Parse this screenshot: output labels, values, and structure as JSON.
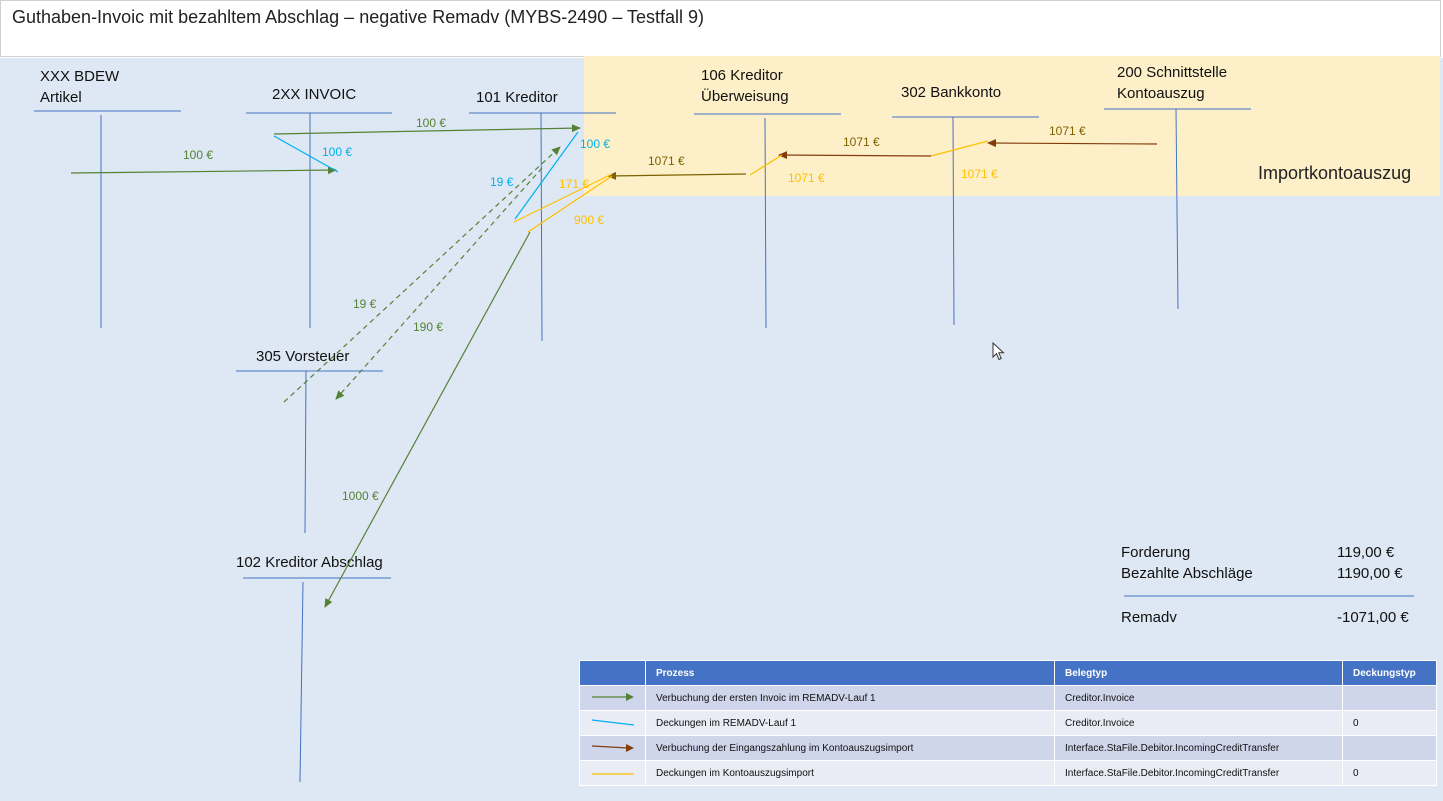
{
  "title": "Guthaben-Invoic mit bezahltem Abschlag – negative Remadv (MYBS-2490 – Testfall 9)",
  "import_zone_label": "Importkontoauszug",
  "accounts": {
    "bdew": "XXX BDEW\nArtikel",
    "invoic": "2XX INVOIC",
    "kreditor101": "101 Kreditor",
    "kreditor106": "106 Kreditor\nÜberweisung",
    "bank302": "302 Bankkonto",
    "schnittstelle200": "200 Schnittstelle\nKontoauszug",
    "vorsteuer305": "305 Vorsteuer",
    "abschlag102": "102 Kreditor Abschlag"
  },
  "amounts": {
    "g100_top": "100 €",
    "g100_left": "100 €",
    "b100_invoic": "100 €",
    "b100_kred": "100 €",
    "b19": "19 €",
    "o171": "171 €",
    "o900": "900 €",
    "br1071_a": "1071 €",
    "br1071_b": "1071 €",
    "br1071_c": "1071 €",
    "o1071_a": "1071 €",
    "o1071_b": "1071 €",
    "g19": "19 €",
    "g190": "190 €",
    "g1000": "1000 €"
  },
  "summary": {
    "forderung_label": "Forderung",
    "forderung_value": "119,00 €",
    "abschlaege_label": "Bezahlte Abschläge",
    "abschlaege_value": "1190,00 €",
    "remadv_label": "Remadv",
    "remadv_value": "-1071,00 €"
  },
  "legend": {
    "headers": [
      "",
      "Prozess",
      "Belegtyp",
      "Deckungstyp"
    ],
    "rows": [
      {
        "line": "green-arrow",
        "prozess": "Verbuchung der ersten Invoic im REMADV-Lauf 1",
        "belegtyp": "Creditor.Invoice",
        "deckungstyp": ""
      },
      {
        "line": "blue-line",
        "prozess": "Deckungen im REMADV-Lauf 1",
        "belegtyp": "Creditor.Invoice",
        "deckungstyp": "0"
      },
      {
        "line": "brown-arrow",
        "prozess": "Verbuchung der Eingangszahlung im Kontoauszugsimport",
        "belegtyp": "Interface.StaFile.Debitor.IncomingCreditTransfer",
        "deckungstyp": ""
      },
      {
        "line": "orange-line",
        "prozess": "Deckungen im Kontoauszugsimport",
        "belegtyp": "Interface.StaFile.Debitor.IncomingCreditTransfer",
        "deckungstyp": "0"
      }
    ]
  },
  "colors": {
    "green": "#548235",
    "blue": "#00b0f0",
    "brown": "#843c0c",
    "orange": "#ffc000",
    "account_line": "#4472c4",
    "header_bg": "#4472c4"
  }
}
